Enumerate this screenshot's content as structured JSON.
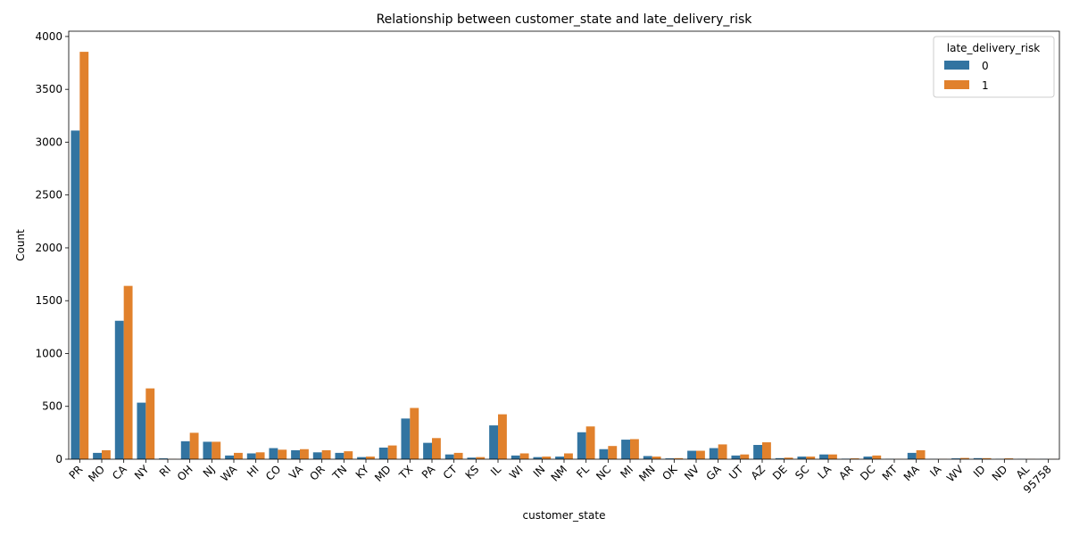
{
  "chart_data": {
    "type": "bar",
    "title": "Relationship between customer_state and late_delivery_risk",
    "xlabel": "customer_state",
    "ylabel": "Count",
    "ylim": [
      0,
      4050
    ],
    "yticks": [
      0,
      500,
      1000,
      1500,
      2000,
      2500,
      3000,
      3500,
      4000
    ],
    "grid": false,
    "legend": {
      "title": "late_delivery_risk",
      "placement": "top-right"
    },
    "categories": [
      "PR",
      "MO",
      "CA",
      "NY",
      "RI",
      "OH",
      "NJ",
      "WA",
      "HI",
      "CO",
      "VA",
      "OR",
      "TN",
      "KY",
      "MD",
      "TX",
      "PA",
      "CT",
      "KS",
      "IL",
      "WI",
      "IN",
      "NM",
      "FL",
      "NC",
      "MI",
      "MN",
      "OK",
      "NV",
      "GA",
      "UT",
      "AZ",
      "DE",
      "SC",
      "LA",
      "AR",
      "DC",
      "MT",
      "MA",
      "IA",
      "WV",
      "ID",
      "ND",
      "AL",
      "95758"
    ],
    "series": [
      {
        "name": "0",
        "color": "#3274a1",
        "values": [
          3110,
          60,
          1310,
          535,
          8,
          170,
          165,
          35,
          55,
          105,
          85,
          65,
          60,
          20,
          110,
          385,
          155,
          45,
          15,
          320,
          35,
          20,
          25,
          255,
          95,
          185,
          30,
          8,
          80,
          105,
          35,
          135,
          10,
          25,
          45,
          5,
          25,
          3,
          60,
          2,
          8,
          10,
          3,
          2,
          2
        ]
      },
      {
        "name": "1",
        "color": "#e1812c",
        "values": [
          3855,
          85,
          1640,
          670,
          2,
          250,
          165,
          60,
          65,
          90,
          95,
          85,
          75,
          25,
          130,
          485,
          200,
          60,
          20,
          425,
          55,
          25,
          55,
          310,
          125,
          190,
          25,
          10,
          80,
          140,
          45,
          160,
          15,
          25,
          45,
          8,
          35,
          2,
          85,
          2,
          12,
          10,
          8,
          2,
          2
        ]
      }
    ]
  }
}
